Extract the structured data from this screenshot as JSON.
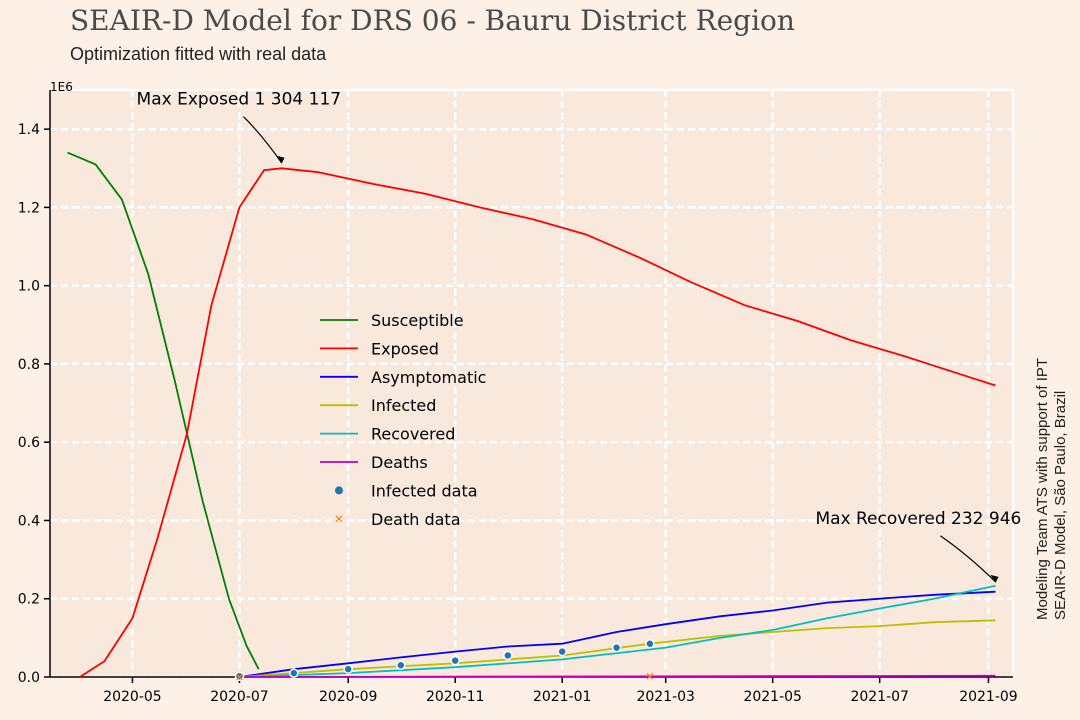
{
  "header": {
    "title": "SEAIR-D Model for DRS 06 - Bauru District Region",
    "subtitle": "Optimization fitted with real data"
  },
  "credits": {
    "line1": "Modeling Team ATS with support of IPT",
    "line2": "SEAIR-D Model, São Paulo, Brazil"
  },
  "colors": {
    "background": "#fdf0e6",
    "plot_background": "#f9e8dc",
    "grid": "#ffffff",
    "Susceptible": "#008000",
    "Exposed": "#ff0000",
    "Asymptomatic": "#0000ff",
    "Infected": "#bfbf00",
    "Recovered": "#00bfbf",
    "Deaths": "#bf00bf",
    "Infected data": "#1f77b4",
    "Death data": "#ff7f0e"
  },
  "chart_data": {
    "type": "line",
    "title": "SEAIR-D Model for DRS 06 - Bauru District Region",
    "subtitle": "Optimization fitted with real data",
    "xlabel": "",
    "ylabel": "",
    "y_scale_label": "1E6",
    "x_ticks": [
      "2020-05",
      "2020-07",
      "2020-09",
      "2020-11",
      "2021-01",
      "2021-03",
      "2021-05",
      "2021-07",
      "2021-09"
    ],
    "y_ticks": [
      "0.0",
      "0.2",
      "0.4",
      "0.6",
      "0.8",
      "1.0",
      "1.2",
      "1.4"
    ],
    "xlim": [
      "2020-03-15",
      "2021-09-15"
    ],
    "ylim": [
      0,
      1.5
    ],
    "grid": true,
    "legend_position": "center-left",
    "series": [
      {
        "name": "Susceptible",
        "style": "line",
        "points": [
          [
            "2020-03-25",
            1.34
          ],
          [
            "2020-04-10",
            1.31
          ],
          [
            "2020-04-25",
            1.22
          ],
          [
            "2020-05-10",
            1.03
          ],
          [
            "2020-05-25",
            0.76
          ],
          [
            "2020-06-10",
            0.45
          ],
          [
            "2020-06-25",
            0.2
          ],
          [
            "2020-07-05",
            0.08
          ],
          [
            "2020-07-12",
            0.02
          ]
        ]
      },
      {
        "name": "Exposed",
        "style": "line",
        "points": [
          [
            "2020-04-01",
            0.0
          ],
          [
            "2020-04-15",
            0.04
          ],
          [
            "2020-05-01",
            0.15
          ],
          [
            "2020-05-15",
            0.35
          ],
          [
            "2020-06-01",
            0.62
          ],
          [
            "2020-06-15",
            0.95
          ],
          [
            "2020-07-01",
            1.2
          ],
          [
            "2020-07-15",
            1.295
          ],
          [
            "2020-07-25",
            1.3
          ],
          [
            "2020-08-15",
            1.29
          ],
          [
            "2020-09-15",
            1.26
          ],
          [
            "2020-10-15",
            1.235
          ],
          [
            "2020-11-15",
            1.2
          ],
          [
            "2020-12-15",
            1.17
          ],
          [
            "2021-01-15",
            1.13
          ],
          [
            "2021-02-15",
            1.07
          ],
          [
            "2021-03-15",
            1.01
          ],
          [
            "2021-04-15",
            0.95
          ],
          [
            "2021-05-15",
            0.91
          ],
          [
            "2021-06-15",
            0.86
          ],
          [
            "2021-07-15",
            0.82
          ],
          [
            "2021-08-15",
            0.775
          ],
          [
            "2021-09-05",
            0.745
          ]
        ]
      },
      {
        "name": "Asymptomatic",
        "style": "line",
        "points": [
          [
            "2020-07-01",
            0.0
          ],
          [
            "2020-08-01",
            0.02
          ],
          [
            "2020-09-01",
            0.035
          ],
          [
            "2020-10-01",
            0.05
          ],
          [
            "2020-11-01",
            0.065
          ],
          [
            "2020-12-01",
            0.078
          ],
          [
            "2021-01-01",
            0.085
          ],
          [
            "2021-02-01",
            0.115
          ],
          [
            "2021-03-01",
            0.135
          ],
          [
            "2021-04-01",
            0.155
          ],
          [
            "2021-05-01",
            0.17
          ],
          [
            "2021-06-01",
            0.19
          ],
          [
            "2021-07-01",
            0.2
          ],
          [
            "2021-08-01",
            0.21
          ],
          [
            "2021-09-05",
            0.218
          ]
        ]
      },
      {
        "name": "Infected",
        "style": "line",
        "points": [
          [
            "2020-07-01",
            0.0
          ],
          [
            "2020-09-01",
            0.02
          ],
          [
            "2020-11-01",
            0.035
          ],
          [
            "2021-01-01",
            0.055
          ],
          [
            "2021-02-20",
            0.085
          ],
          [
            "2021-04-01",
            0.105
          ],
          [
            "2021-05-01",
            0.115
          ],
          [
            "2021-06-01",
            0.125
          ],
          [
            "2021-07-01",
            0.13
          ],
          [
            "2021-08-01",
            0.14
          ],
          [
            "2021-09-05",
            0.145
          ]
        ]
      },
      {
        "name": "Recovered",
        "style": "line",
        "points": [
          [
            "2020-07-01",
            0.0
          ],
          [
            "2020-09-01",
            0.01
          ],
          [
            "2020-11-01",
            0.025
          ],
          [
            "2021-01-01",
            0.045
          ],
          [
            "2021-03-01",
            0.075
          ],
          [
            "2021-04-01",
            0.1
          ],
          [
            "2021-05-01",
            0.12
          ],
          [
            "2021-06-01",
            0.15
          ],
          [
            "2021-07-01",
            0.175
          ],
          [
            "2021-08-01",
            0.2
          ],
          [
            "2021-09-05",
            0.233
          ]
        ]
      },
      {
        "name": "Deaths",
        "style": "line",
        "points": [
          [
            "2020-07-01",
            0.0
          ],
          [
            "2021-09-05",
            0.003
          ]
        ]
      },
      {
        "name": "Infected data",
        "style": "marker-circle",
        "points": [
          [
            "2020-07-01",
            0.002
          ],
          [
            "2020-08-01",
            0.01
          ],
          [
            "2020-09-01",
            0.02
          ],
          [
            "2020-10-01",
            0.03
          ],
          [
            "2020-11-01",
            0.042
          ],
          [
            "2020-12-01",
            0.055
          ],
          [
            "2021-01-01",
            0.065
          ],
          [
            "2021-02-01",
            0.075
          ],
          [
            "2021-02-20",
            0.085
          ]
        ]
      },
      {
        "name": "Death data",
        "style": "marker-x",
        "points": [
          [
            "2020-07-01",
            0.0
          ],
          [
            "2021-02-20",
            0.002
          ]
        ]
      }
    ],
    "annotations": [
      {
        "text": "Max Exposed 1 304 117",
        "x": "2020-07-25",
        "y": 1.304
      },
      {
        "text": "Max Recovered 232 946",
        "x": "2021-09-05",
        "y": 0.233
      }
    ]
  }
}
